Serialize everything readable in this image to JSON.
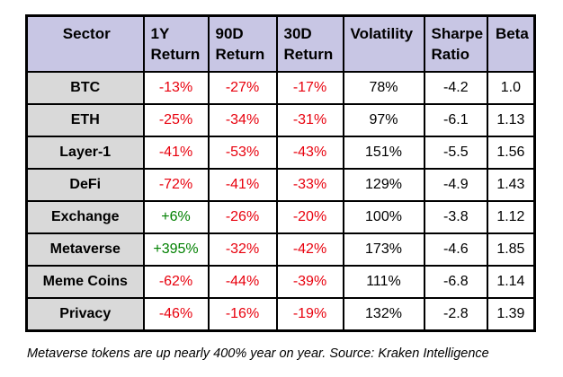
{
  "chart_data": {
    "type": "table",
    "title": "",
    "columns": [
      "Sector",
      "1Y Return",
      "90D Return",
      "30D Return",
      "Volatility",
      "Sharpe Ratio",
      "Beta"
    ],
    "header_lines": [
      {
        "line1": "Sector",
        "line2": ""
      },
      {
        "line1": "1Y",
        "line2": "Return"
      },
      {
        "line1": "90D",
        "line2": "Return"
      },
      {
        "line1": "30D",
        "line2": "Return"
      },
      {
        "line1": "Volatility",
        "line2": ""
      },
      {
        "line1": "Sharpe",
        "line2": "Ratio"
      },
      {
        "line1": "Beta",
        "line2": ""
      }
    ],
    "rows": [
      [
        "BTC",
        "-13%",
        "-27%",
        "-17%",
        "78%",
        "-4.2",
        "1.0"
      ],
      [
        "ETH",
        "-25%",
        "-34%",
        "-31%",
        "97%",
        "-6.1",
        "1.13"
      ],
      [
        "Layer-1",
        "-41%",
        "-53%",
        "-43%",
        "151%",
        "-5.5",
        "1.56"
      ],
      [
        "DeFi",
        "-72%",
        "-41%",
        "-33%",
        "129%",
        "-4.9",
        "1.43"
      ],
      [
        "Exchange",
        "+6%",
        "-26%",
        "-20%",
        "100%",
        "-3.8",
        "1.12"
      ],
      [
        "Metaverse",
        "+395%",
        "-32%",
        "-42%",
        "173%",
        "-4.6",
        "1.85"
      ],
      [
        "Meme Coins",
        "-62%",
        "-44%",
        "-39%",
        "111%",
        "-6.8",
        "1.14"
      ],
      [
        "Privacy",
        "-46%",
        "-16%",
        "-19%",
        "132%",
        "-2.8",
        "1.39"
      ]
    ],
    "value_color_columns": [
      1,
      2,
      3
    ],
    "legend_position": "none",
    "grid": true
  },
  "caption": "Metaverse tokens are up nearly 400% year on year. Source: Kraken Intelligence",
  "colors": {
    "negative": "#e8000d",
    "positive": "#008000",
    "header_bg": "#c8c6e4",
    "sector_bg": "#d9d9d9",
    "border": "#000000"
  }
}
